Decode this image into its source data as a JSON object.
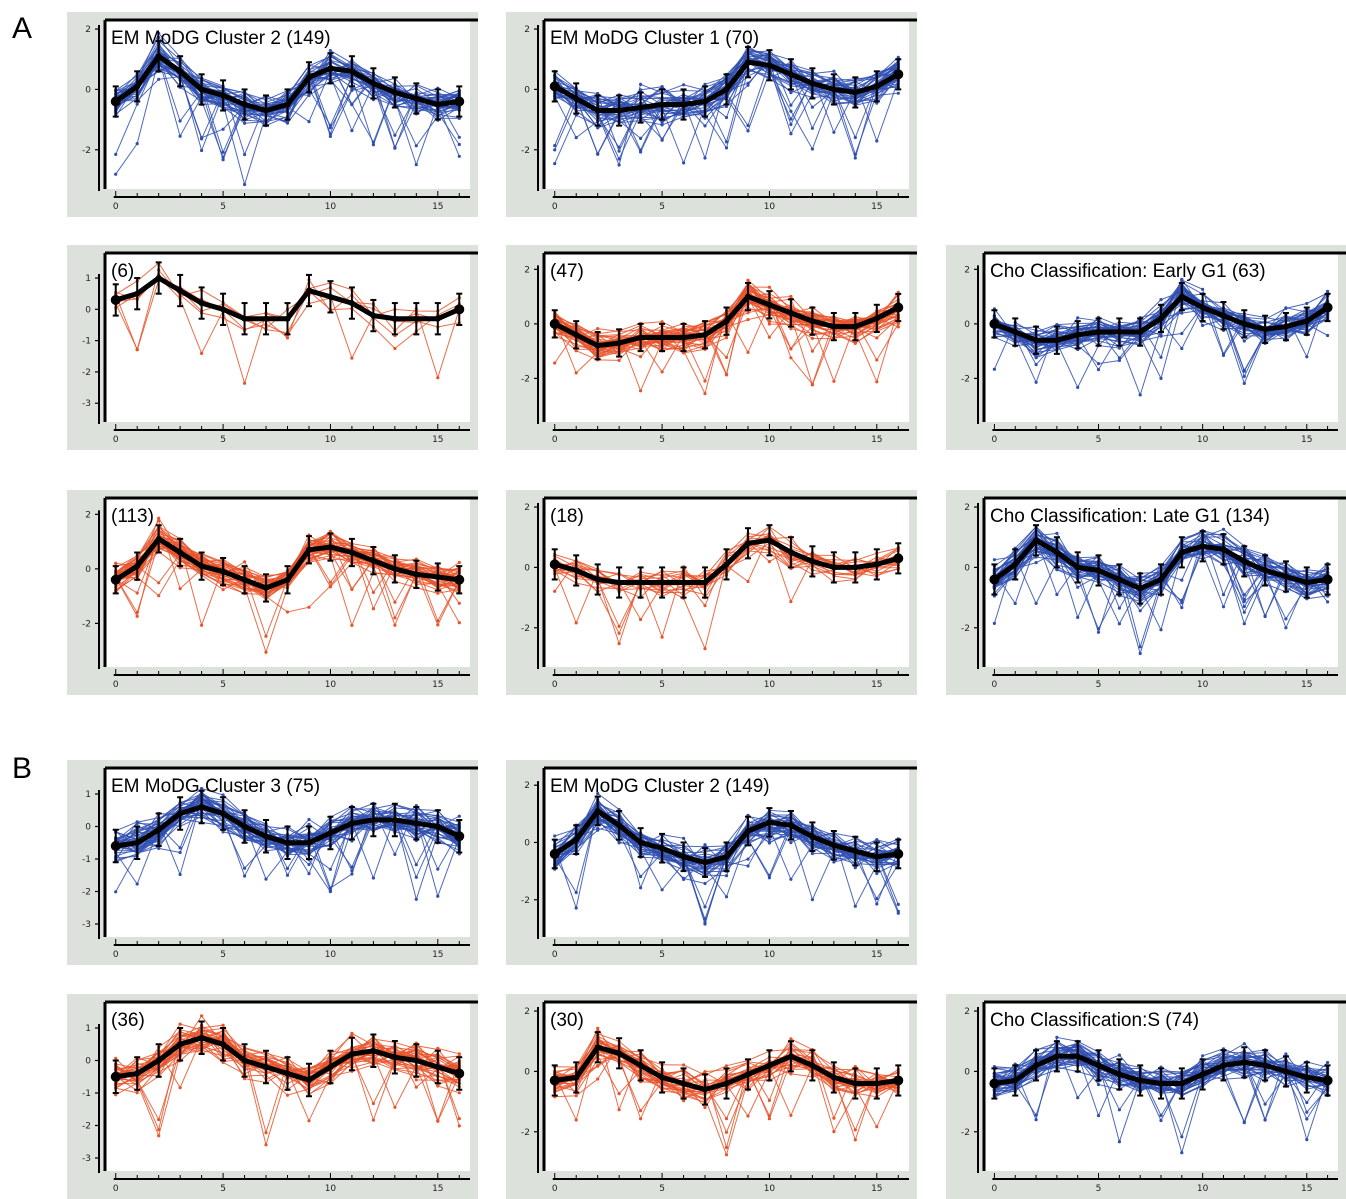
{
  "sections": [
    {
      "label": "A"
    },
    {
      "label": "B"
    }
  ],
  "style": {
    "blue": "#2f4fb0",
    "red": "#e8532a",
    "mean": "#000000",
    "panel_bg": "#dde1dc"
  },
  "chart_data": [
    {
      "id": "a1",
      "type": "line",
      "title": "EM MoDG Cluster 2 (149)",
      "color": "blue",
      "series_count": 149,
      "x": [
        0,
        1,
        2,
        3,
        4,
        5,
        6,
        7,
        8,
        9,
        10,
        11,
        12,
        13,
        14,
        15,
        16
      ],
      "mean": [
        -0.4,
        0.1,
        1.1,
        0.6,
        0.0,
        -0.2,
        -0.5,
        -0.7,
        -0.5,
        0.4,
        0.7,
        0.6,
        0.2,
        -0.1,
        -0.3,
        -0.5,
        -0.4
      ],
      "xticks": [
        0,
        5,
        10,
        15
      ],
      "yticks": [
        -2,
        0,
        2
      ],
      "ylim": [
        -3.3,
        2.3
      ],
      "xlim": [
        -0.5,
        16.5
      ]
    },
    {
      "id": "a2",
      "type": "line",
      "title": "EM MoDG Cluster 1 (70)",
      "color": "blue",
      "series_count": 70,
      "x": [
        0,
        1,
        2,
        3,
        4,
        5,
        6,
        7,
        8,
        9,
        10,
        11,
        12,
        13,
        14,
        15,
        16
      ],
      "mean": [
        0.1,
        -0.3,
        -0.7,
        -0.7,
        -0.6,
        -0.5,
        -0.5,
        -0.4,
        0.0,
        0.9,
        0.8,
        0.5,
        0.2,
        0.0,
        -0.1,
        0.1,
        0.5
      ],
      "xticks": [
        0,
        5,
        10,
        15
      ],
      "yticks": [
        -2,
        0,
        2
      ],
      "ylim": [
        -3.3,
        2.3
      ],
      "xlim": [
        -0.5,
        16.5
      ]
    },
    {
      "id": "a3",
      "type": "line",
      "title": "(6)",
      "color": "red",
      "series_count": 6,
      "x": [
        0,
        1,
        2,
        3,
        4,
        5,
        6,
        7,
        8,
        9,
        10,
        11,
        12,
        13,
        14,
        15,
        16
      ],
      "mean": [
        0.3,
        0.5,
        1.0,
        0.6,
        0.2,
        0.0,
        -0.3,
        -0.3,
        -0.3,
        0.6,
        0.4,
        0.2,
        -0.2,
        -0.3,
        -0.3,
        -0.3,
        0.0
      ],
      "xticks": [
        0,
        5,
        10,
        15
      ],
      "yticks": [
        -3,
        -2,
        -1,
        0,
        1
      ],
      "ylim": [
        -3.6,
        1.8
      ],
      "xlim": [
        -0.5,
        16.5
      ]
    },
    {
      "id": "a4",
      "type": "line",
      "title": "(47)",
      "color": "red",
      "series_count": 47,
      "x": [
        0,
        1,
        2,
        3,
        4,
        5,
        6,
        7,
        8,
        9,
        10,
        11,
        12,
        13,
        14,
        15,
        16
      ],
      "mean": [
        0.0,
        -0.4,
        -0.8,
        -0.7,
        -0.5,
        -0.5,
        -0.5,
        -0.4,
        0.1,
        1.0,
        0.7,
        0.4,
        0.1,
        -0.1,
        -0.1,
        0.2,
        0.6
      ],
      "xticks": [
        0,
        5,
        10,
        15
      ],
      "yticks": [
        -2,
        0,
        2
      ],
      "ylim": [
        -3.6,
        2.6
      ],
      "xlim": [
        -0.5,
        16.5
      ]
    },
    {
      "id": "a5",
      "type": "line",
      "title": "Cho Classification: Early  G1 (63)",
      "color": "blue",
      "series_count": 63,
      "x": [
        0,
        1,
        2,
        3,
        4,
        5,
        6,
        7,
        8,
        9,
        10,
        11,
        12,
        13,
        14,
        15,
        16
      ],
      "mean": [
        0.0,
        -0.3,
        -0.6,
        -0.6,
        -0.4,
        -0.3,
        -0.3,
        -0.3,
        0.2,
        1.0,
        0.6,
        0.3,
        0.0,
        -0.2,
        -0.1,
        0.1,
        0.6
      ],
      "xticks": [
        0,
        5,
        10,
        15
      ],
      "yticks": [
        -2,
        0,
        2
      ],
      "ylim": [
        -3.6,
        2.6
      ],
      "xlim": [
        -0.5,
        16.5
      ]
    },
    {
      "id": "a6",
      "type": "line",
      "title": "(113)",
      "color": "red",
      "series_count": 113,
      "x": [
        0,
        1,
        2,
        3,
        4,
        5,
        6,
        7,
        8,
        9,
        10,
        11,
        12,
        13,
        14,
        15,
        16
      ],
      "mean": [
        -0.4,
        0.1,
        1.1,
        0.6,
        0.1,
        -0.1,
        -0.4,
        -0.7,
        -0.4,
        0.7,
        0.8,
        0.6,
        0.3,
        0.0,
        -0.2,
        -0.3,
        -0.4
      ],
      "xticks": [
        0,
        5,
        10,
        15
      ],
      "yticks": [
        -2,
        0,
        2
      ],
      "ylim": [
        -3.6,
        2.6
      ],
      "xlim": [
        -0.5,
        16.5
      ]
    },
    {
      "id": "a7",
      "type": "line",
      "title": "(18)",
      "color": "red",
      "series_count": 18,
      "x": [
        0,
        1,
        2,
        3,
        4,
        5,
        6,
        7,
        8,
        9,
        10,
        11,
        12,
        13,
        14,
        15,
        16
      ],
      "mean": [
        0.1,
        -0.1,
        -0.4,
        -0.5,
        -0.5,
        -0.5,
        -0.5,
        -0.5,
        0.1,
        0.8,
        0.9,
        0.5,
        0.2,
        0.0,
        0.0,
        0.1,
        0.3
      ],
      "xticks": [
        0,
        5,
        10,
        15
      ],
      "yticks": [
        -2,
        0,
        2
      ],
      "ylim": [
        -3.3,
        2.3
      ],
      "xlim": [
        -0.5,
        16.5
      ]
    },
    {
      "id": "a8",
      "type": "line",
      "title": "Cho Classification: Late G1 (134)",
      "color": "blue",
      "series_count": 134,
      "x": [
        0,
        1,
        2,
        3,
        4,
        5,
        6,
        7,
        8,
        9,
        10,
        11,
        12,
        13,
        14,
        15,
        16
      ],
      "mean": [
        -0.4,
        0.1,
        0.9,
        0.5,
        0.0,
        -0.1,
        -0.4,
        -0.7,
        -0.4,
        0.5,
        0.7,
        0.6,
        0.2,
        -0.1,
        -0.3,
        -0.5,
        -0.4
      ],
      "xticks": [
        0,
        5,
        10,
        15
      ],
      "yticks": [
        -2,
        0,
        2
      ],
      "ylim": [
        -3.3,
        2.3
      ],
      "xlim": [
        -0.5,
        16.5
      ]
    },
    {
      "id": "b1",
      "type": "line",
      "title": "EM MoDG Cluster 3 (75)",
      "color": "blue",
      "series_count": 75,
      "x": [
        0,
        1,
        2,
        3,
        4,
        5,
        6,
        7,
        8,
        9,
        10,
        11,
        12,
        13,
        14,
        15,
        16
      ],
      "mean": [
        -0.6,
        -0.5,
        -0.1,
        0.4,
        0.6,
        0.4,
        0.0,
        -0.3,
        -0.5,
        -0.5,
        -0.2,
        0.1,
        0.2,
        0.2,
        0.1,
        0.0,
        -0.3
      ],
      "xticks": [
        0,
        5,
        10,
        15
      ],
      "yticks": [
        -3,
        -2,
        -1,
        0,
        1
      ],
      "ylim": [
        -3.4,
        1.8
      ],
      "xlim": [
        -0.5,
        16.5
      ]
    },
    {
      "id": "b2",
      "type": "line",
      "title": "EM MoDG Cluster 2 (149)",
      "color": "blue",
      "series_count": 149,
      "x": [
        0,
        1,
        2,
        3,
        4,
        5,
        6,
        7,
        8,
        9,
        10,
        11,
        12,
        13,
        14,
        15,
        16
      ],
      "mean": [
        -0.4,
        0.1,
        1.1,
        0.6,
        0.0,
        -0.2,
        -0.5,
        -0.7,
        -0.5,
        0.4,
        0.7,
        0.6,
        0.2,
        -0.1,
        -0.3,
        -0.5,
        -0.4
      ],
      "xticks": [
        0,
        5,
        10,
        15
      ],
      "yticks": [
        -2,
        0,
        2
      ],
      "ylim": [
        -3.3,
        2.6
      ],
      "xlim": [
        -0.5,
        16.5
      ]
    },
    {
      "id": "b3",
      "type": "line",
      "title": "(36)",
      "color": "red",
      "series_count": 36,
      "x": [
        0,
        1,
        2,
        3,
        4,
        5,
        6,
        7,
        8,
        9,
        10,
        11,
        12,
        13,
        14,
        15,
        16
      ],
      "mean": [
        -0.5,
        -0.4,
        0.0,
        0.5,
        0.7,
        0.5,
        0.0,
        -0.2,
        -0.4,
        -0.6,
        -0.2,
        0.2,
        0.3,
        0.1,
        0.0,
        -0.2,
        -0.4
      ],
      "xticks": [
        0,
        5,
        10,
        15
      ],
      "yticks": [
        -3,
        -2,
        -1,
        0,
        1
      ],
      "ylim": [
        -3.4,
        1.8
      ],
      "xlim": [
        -0.5,
        16.5
      ]
    },
    {
      "id": "b4",
      "type": "line",
      "title": "(30)",
      "color": "red",
      "series_count": 30,
      "x": [
        0,
        1,
        2,
        3,
        4,
        5,
        6,
        7,
        8,
        9,
        10,
        11,
        12,
        13,
        14,
        15,
        16
      ],
      "mean": [
        -0.3,
        -0.2,
        0.8,
        0.6,
        0.2,
        -0.2,
        -0.4,
        -0.6,
        -0.4,
        -0.1,
        0.2,
        0.5,
        0.2,
        -0.2,
        -0.4,
        -0.4,
        -0.3
      ],
      "xticks": [
        0,
        5,
        10,
        15
      ],
      "yticks": [
        -2,
        0,
        2
      ],
      "ylim": [
        -3.3,
        2.3
      ],
      "xlim": [
        -0.5,
        16.5
      ]
    },
    {
      "id": "b5",
      "type": "line",
      "title": "Cho Classification:S (74)",
      "color": "blue",
      "series_count": 74,
      "x": [
        0,
        1,
        2,
        3,
        4,
        5,
        6,
        7,
        8,
        9,
        10,
        11,
        12,
        13,
        14,
        15,
        16
      ],
      "mean": [
        -0.4,
        -0.3,
        0.2,
        0.5,
        0.5,
        0.2,
        -0.1,
        -0.3,
        -0.4,
        -0.4,
        -0.1,
        0.2,
        0.3,
        0.2,
        0.0,
        -0.2,
        -0.3
      ],
      "xticks": [
        0,
        5,
        10,
        15
      ],
      "yticks": [
        -2,
        0,
        2
      ],
      "ylim": [
        -3.3,
        2.3
      ],
      "xlim": [
        -0.5,
        16.5
      ]
    }
  ]
}
